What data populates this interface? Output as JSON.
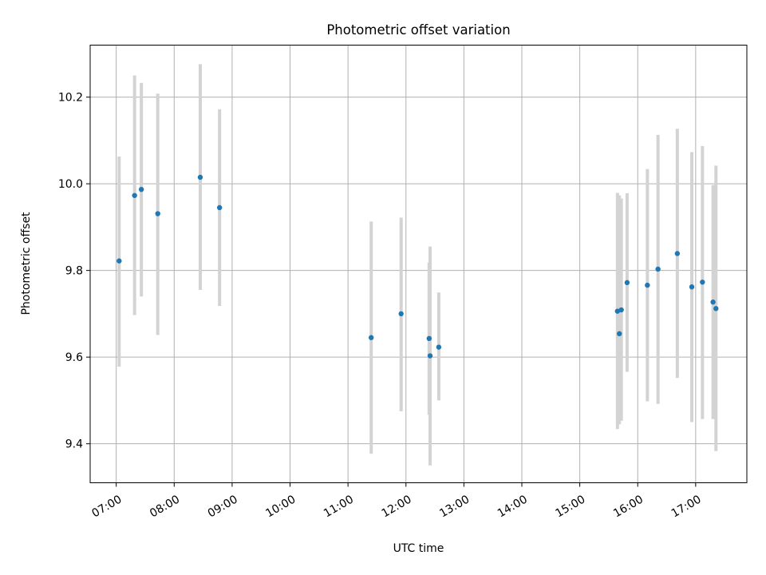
{
  "chart_data": {
    "type": "scatter",
    "title": "Photometric offset variation",
    "xlabel": "UTC time",
    "ylabel": "Photometric offset",
    "x_axis": {
      "kind": "time",
      "unit": "hours UTC",
      "range": [
        "06:33",
        "17:53"
      ],
      "ticks": [
        "07:00",
        "08:00",
        "09:00",
        "10:00",
        "11:00",
        "12:00",
        "13:00",
        "14:00",
        "15:00",
        "16:00",
        "17:00"
      ],
      "tick_rotation": "30deg"
    },
    "y_axis": {
      "range": [
        9.31,
        10.32
      ],
      "ticks": [
        9.4,
        9.6,
        9.8,
        10.0,
        10.2
      ],
      "tick_labels": [
        "9.4",
        "9.6",
        "9.8",
        "10.0",
        "10.2"
      ]
    },
    "grid": true,
    "legend": "none",
    "colors": {
      "point": "#1f77b4",
      "errorbar": "#d3d3d3",
      "grid": "#b0b0b0",
      "axes": "#000000"
    },
    "series": [
      {
        "points": [
          {
            "x": "07:03",
            "y": 9.822,
            "y_err_low": 9.578,
            "y_err_high": 10.063
          },
          {
            "x": "07:19",
            "y": 9.973,
            "y_err_low": 9.697,
            "y_err_high": 10.25
          },
          {
            "x": "07:26",
            "y": 9.987,
            "y_err_low": 9.74,
            "y_err_high": 10.233
          },
          {
            "x": "07:43",
            "y": 9.931,
            "y_err_low": 9.651,
            "y_err_high": 10.208
          },
          {
            "x": "08:27",
            "y": 10.015,
            "y_err_low": 9.755,
            "y_err_high": 10.276
          },
          {
            "x": "08:47",
            "y": 9.945,
            "y_err_low": 9.718,
            "y_err_high": 10.172
          },
          {
            "x": "11:24",
            "y": 9.645,
            "y_err_low": 9.377,
            "y_err_high": 9.913
          },
          {
            "x": "11:55",
            "y": 9.7,
            "y_err_low": 9.475,
            "y_err_high": 9.922
          },
          {
            "x": "12:24",
            "y": 9.643,
            "y_err_low": 9.467,
            "y_err_high": 9.818
          },
          {
            "x": "12:25",
            "y": 9.603,
            "y_err_low": 9.35,
            "y_err_high": 9.855
          },
          {
            "x": "12:34",
            "y": 9.623,
            "y_err_low": 9.5,
            "y_err_high": 9.749
          },
          {
            "x": "15:39",
            "y": 9.706,
            "y_err_low": 9.434,
            "y_err_high": 9.979
          },
          {
            "x": "15:41",
            "y": 9.654,
            "y_err_low": 9.445,
            "y_err_high": 9.973
          },
          {
            "x": "15:43",
            "y": 9.709,
            "y_err_low": 9.453,
            "y_err_high": 9.966
          },
          {
            "x": "15:49",
            "y": 9.772,
            "y_err_low": 9.566,
            "y_err_high": 9.978
          },
          {
            "x": "16:10",
            "y": 9.766,
            "y_err_low": 9.498,
            "y_err_high": 10.034
          },
          {
            "x": "16:21",
            "y": 9.803,
            "y_err_low": 9.492,
            "y_err_high": 10.113
          },
          {
            "x": "16:41",
            "y": 9.839,
            "y_err_low": 9.552,
            "y_err_high": 10.127
          },
          {
            "x": "16:56",
            "y": 9.762,
            "y_err_low": 9.45,
            "y_err_high": 10.073
          },
          {
            "x": "17:07",
            "y": 9.773,
            "y_err_low": 9.457,
            "y_err_high": 10.087
          },
          {
            "x": "17:18",
            "y": 9.727,
            "y_err_low": 9.457,
            "y_err_high": 9.997
          },
          {
            "x": "17:21",
            "y": 9.712,
            "y_err_low": 9.383,
            "y_err_high": 10.042
          }
        ]
      }
    ]
  }
}
